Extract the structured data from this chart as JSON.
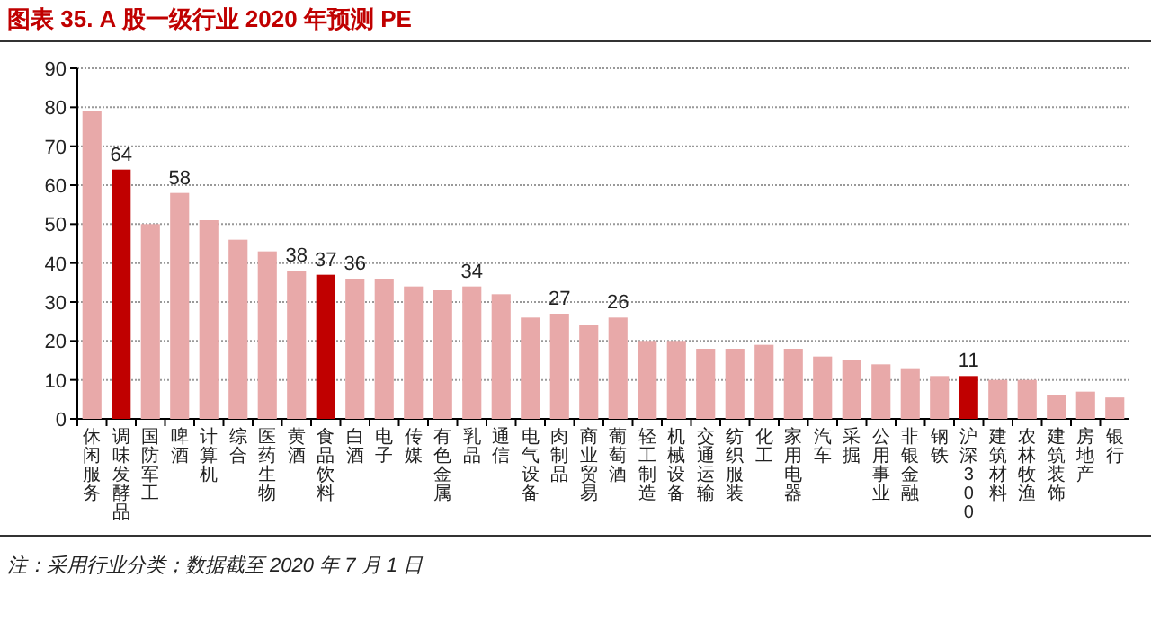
{
  "chart_data": {
    "type": "bar",
    "title": "图表 35. A 股一级行业 2020 年预测 PE",
    "categories": [
      "休闲服务",
      "调味发酵品",
      "国防军工",
      "啤酒",
      "计算机",
      "综合",
      "医药生物",
      "黄酒",
      "食品饮料",
      "白酒",
      "电子",
      "传媒",
      "有色金属",
      "乳品",
      "通信",
      "电气设备",
      "肉制品",
      "商业贸易",
      "葡萄酒",
      "轻工制造",
      "机械设备",
      "交通运输",
      "纺织服装",
      "化工",
      "家用电器",
      "汽车",
      "采掘",
      "公用事业",
      "非银金融",
      "钢铁",
      "沪深300",
      "建筑材料",
      "农林牧渔",
      "建筑装饰",
      "房地产",
      "银行"
    ],
    "values": [
      79,
      64,
      50,
      58,
      51,
      46,
      43,
      38,
      37,
      36,
      36,
      34,
      33,
      34,
      32,
      26,
      27,
      24,
      26,
      20,
      20,
      18,
      18,
      19,
      18,
      16,
      15,
      14,
      13,
      11,
      11,
      10,
      10,
      6,
      7,
      5.5
    ],
    "value_labels": [
      null,
      "64",
      null,
      "58",
      null,
      null,
      null,
      "38",
      "37",
      "36",
      null,
      null,
      null,
      "34",
      null,
      null,
      "27",
      null,
      "26",
      null,
      null,
      null,
      null,
      null,
      null,
      null,
      null,
      null,
      null,
      null,
      "11",
      null,
      null,
      null,
      null,
      null
    ],
    "colors": [
      "#e8a9a9",
      "#c00000",
      "#e8a9a9",
      "#e8a9a9",
      "#e8a9a9",
      "#e8a9a9",
      "#e8a9a9",
      "#e8a9a9",
      "#c00000",
      "#e8a9a9",
      "#e8a9a9",
      "#e8a9a9",
      "#e8a9a9",
      "#e8a9a9",
      "#e8a9a9",
      "#e8a9a9",
      "#e8a9a9",
      "#e8a9a9",
      "#e8a9a9",
      "#e8a9a9",
      "#e8a9a9",
      "#e8a9a9",
      "#e8a9a9",
      "#e8a9a9",
      "#e8a9a9",
      "#e8a9a9",
      "#e8a9a9",
      "#e8a9a9",
      "#e8a9a9",
      "#e8a9a9",
      "#c00000",
      "#e8a9a9",
      "#e8a9a9",
      "#e8a9a9",
      "#e8a9a9",
      "#e8a9a9"
    ],
    "ylim": [
      0,
      90
    ],
    "yticks": [
      0,
      10,
      20,
      30,
      40,
      50,
      60,
      70,
      80,
      90
    ],
    "grid": "y",
    "annotations": [
      "注：采用行业分类；数据截至 2020 年 7 月 1 日"
    ]
  }
}
